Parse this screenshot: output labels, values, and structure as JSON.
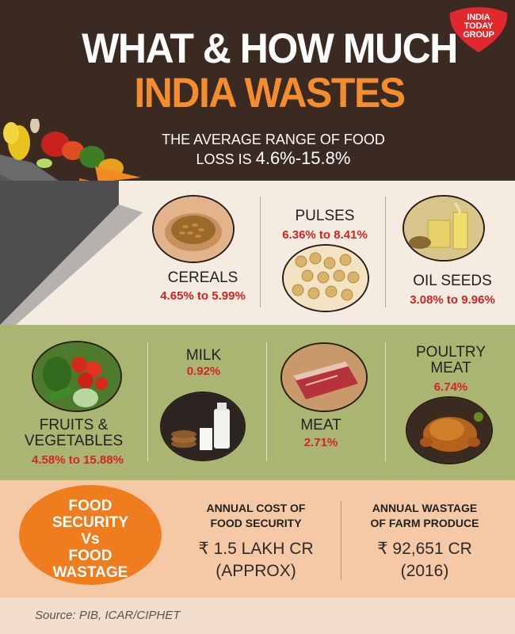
{
  "logo": {
    "line1": "INDIA",
    "line2": "TODAY",
    "line3": "GROUP",
    "color": "#e0282e"
  },
  "title": {
    "line1": "WHAT & HOW MUCH",
    "line2": "INDIA WASTES"
  },
  "subtitle": {
    "line1": "THE AVERAGE RANGE OF FOOD",
    "line2_prefix": "LOSS IS ",
    "line2_range": "4.6%-15.8%"
  },
  "items": {
    "cereals": {
      "label": "CEREALS",
      "value": "4.65% to 5.99%",
      "icon": "grain-icon"
    },
    "pulses": {
      "label": "PULSES",
      "value": "6.36% to 8.41%",
      "icon": "chickpea-icon"
    },
    "oil_seeds": {
      "label": "OIL SEEDS",
      "value": "3.08% to 9.96%",
      "icon": "oil-icon"
    },
    "fruits_vegetables": {
      "label1": "FRUITS &",
      "label2": "VEGETABLES",
      "value": "4.58% to 15.88%",
      "icon": "vegetables-icon"
    },
    "milk": {
      "label": "MILK",
      "value": "0.92%",
      "icon": "milk-icon"
    },
    "meat": {
      "label": "MEAT",
      "value": "2.71%",
      "icon": "meat-icon"
    },
    "poultry": {
      "label1": "POULTRY",
      "label2": "MEAT",
      "value": "6.74%",
      "icon": "roast-chicken-icon"
    }
  },
  "comparison": {
    "circle": {
      "line1": "FOOD",
      "line2": "SECURITY",
      "line3": "Vs",
      "line4": "FOOD",
      "line5": "WASTAGE"
    },
    "cost": {
      "head1": "ANNUAL COST OF",
      "head2": "FOOD SECURITY",
      "value1": "₹ 1.5 LAKH CR",
      "value2": "(APPROX)"
    },
    "wastage": {
      "head1": "ANNUAL WASTAGE",
      "head2": "OF FARM PRODUCE",
      "value1": "₹ 92,651 CR",
      "value2": "(2016)"
    }
  },
  "source": "Source: PIB, ICAR/CIPHET",
  "colors": {
    "header_bg": "#3b2a22",
    "accent_orange": "#f48d2d",
    "value_red": "#d42424",
    "band_green": "#aab572",
    "band_peach": "#f5c9a6"
  }
}
